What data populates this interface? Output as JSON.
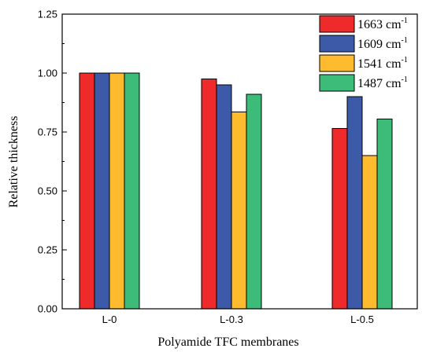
{
  "chart_data": {
    "type": "bar",
    "xlabel": "Polyamide TFC membranes",
    "ylabel": "Relative thickness",
    "categories": [
      "L-0",
      "L-0.3",
      "L-0.5"
    ],
    "ylim": [
      0,
      1.25
    ],
    "yticks": [
      "0.00",
      "0.25",
      "0.50",
      "0.75",
      "1.00",
      "1.25"
    ],
    "grid": false,
    "legend_position": "top-right",
    "series": [
      {
        "name": "1663 cm",
        "unit_exponent": "-1",
        "color": "#ee2a2a",
        "values": [
          1.0,
          0.975,
          0.765
        ]
      },
      {
        "name": "1609 cm",
        "unit_exponent": "-1",
        "color": "#3c5aa8",
        "values": [
          1.0,
          0.95,
          0.9
        ]
      },
      {
        "name": "1541 cm",
        "unit_exponent": "-1",
        "color": "#fdbb2d",
        "values": [
          1.0,
          0.835,
          0.65
        ]
      },
      {
        "name": "1487 cm",
        "unit_exponent": "-1",
        "color": "#3dbb78",
        "values": [
          1.0,
          0.91,
          0.805
        ]
      }
    ]
  }
}
